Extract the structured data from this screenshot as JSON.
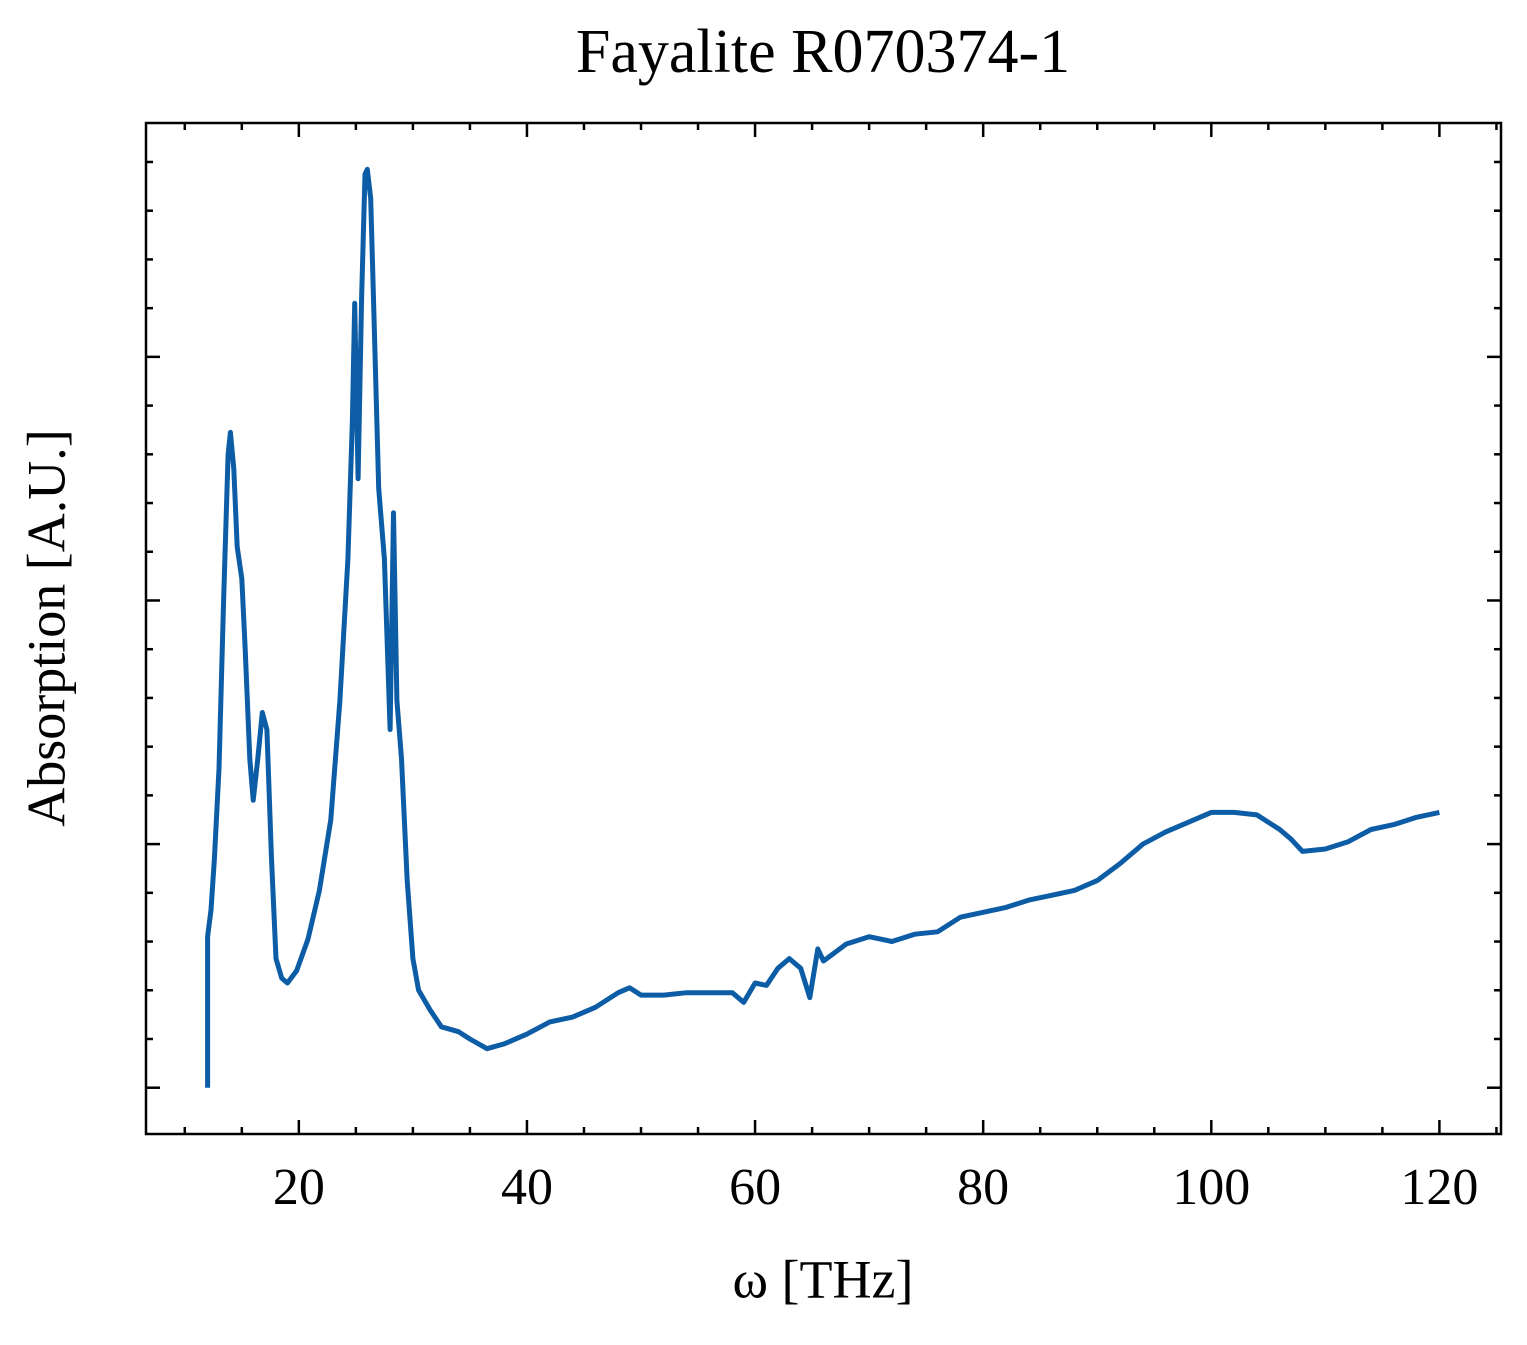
{
  "chart_data": {
    "type": "line",
    "title": "Fayalite R070374-1",
    "x_label": "ω [THz]",
    "y_label": "Absorption [A.U.]",
    "xlim": [
      6.6,
      125.4
    ],
    "ylim": [
      -0.19,
      3.96
    ],
    "xticks": [
      20,
      40,
      60,
      80,
      100,
      120
    ],
    "xticks_minor": [
      10,
      15,
      25,
      30,
      35,
      45,
      50,
      55,
      65,
      70,
      75,
      85,
      90,
      95,
      105,
      110,
      115,
      125
    ],
    "yticks": [
      0,
      1,
      2,
      3
    ],
    "yticks_minor": [
      0.2,
      0.4,
      0.6,
      0.8,
      1.2,
      1.4,
      1.6,
      1.8,
      2.2,
      2.4,
      2.6,
      2.8,
      3.2,
      3.4,
      3.6,
      3.8
    ],
    "series": [
      {
        "color": "#0C5DA5",
        "x": [
          12.0,
          12.0,
          12.3,
          12.6,
          13.0,
          13.4,
          13.8,
          14.0,
          14.3,
          14.6,
          15.0,
          15.3,
          15.7,
          16.0,
          16.4,
          16.8,
          17.2,
          17.6,
          18.0,
          18.5,
          19.0,
          19.8,
          20.8,
          21.8,
          22.8,
          23.6,
          24.3,
          24.7,
          24.9,
          25.2,
          25.5,
          25.8,
          26.0,
          26.3,
          26.6,
          27.0,
          27.5,
          28.0,
          28.3,
          28.6,
          29.0,
          29.5,
          30.0,
          30.5,
          31.5,
          32.5,
          34,
          35,
          36.5,
          38,
          40,
          42,
          44,
          46,
          48,
          49,
          50,
          52,
          54,
          56,
          58,
          59,
          60,
          61,
          62,
          63,
          64,
          64.8,
          65.5,
          66,
          68,
          70,
          72,
          74,
          76,
          78,
          80,
          82,
          84,
          86,
          88,
          90,
          92,
          94,
          96,
          98,
          100,
          102,
          104,
          106,
          107,
          108,
          110,
          112,
          114,
          116,
          118,
          120
        ],
        "values": [
          0,
          0.62,
          0.73,
          0.94,
          1.31,
          2.0,
          2.6,
          2.69,
          2.54,
          2.22,
          2.09,
          1.8,
          1.35,
          1.18,
          1.35,
          1.54,
          1.47,
          0.94,
          0.53,
          0.45,
          0.43,
          0.48,
          0.61,
          0.81,
          1.1,
          1.59,
          2.17,
          2.74,
          3.22,
          2.5,
          3.24,
          3.75,
          3.77,
          3.65,
          3.15,
          2.46,
          2.17,
          1.47,
          2.36,
          1.59,
          1.35,
          0.85,
          0.53,
          0.4,
          0.32,
          0.25,
          0.23,
          0.2,
          0.16,
          0.18,
          0.22,
          0.27,
          0.29,
          0.33,
          0.39,
          0.41,
          0.38,
          0.38,
          0.39,
          0.39,
          0.39,
          0.35,
          0.43,
          0.42,
          0.49,
          0.53,
          0.49,
          0.37,
          0.57,
          0.52,
          0.59,
          0.62,
          0.6,
          0.63,
          0.64,
          0.7,
          0.72,
          0.74,
          0.77,
          0.79,
          0.81,
          0.85,
          0.92,
          1.0,
          1.05,
          1.09,
          1.13,
          1.13,
          1.12,
          1.06,
          1.02,
          0.97,
          0.98,
          1.01,
          1.06,
          1.08,
          1.11,
          1.13
        ]
      }
    ]
  }
}
